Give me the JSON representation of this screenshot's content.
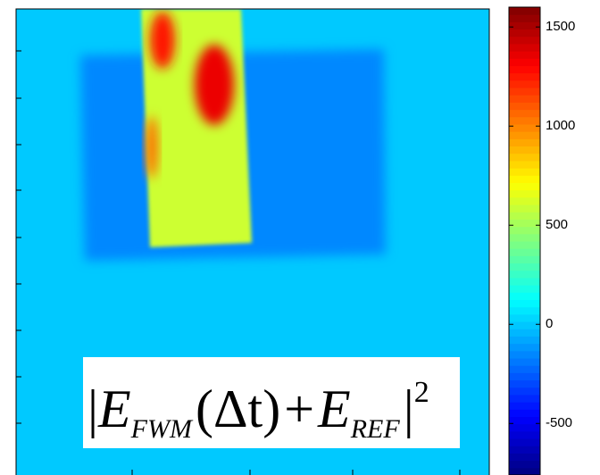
{
  "chart_data": {
    "type": "image",
    "values": [
      0,
      -150,
      600,
      1250,
      1350,
      1050
    ],
    "colormap": "jet",
    "clim": [
      -760,
      1600
    ],
    "yticks": [
      -500,
      0,
      500,
      1000,
      1500
    ],
    "annotation": {
      "bar": "|",
      "base1": "E",
      "sub1": "FWM",
      "mid": "(Δt)",
      "plus": "+",
      "base2": "E",
      "sub2": "REF",
      "sup": "2"
    }
  }
}
